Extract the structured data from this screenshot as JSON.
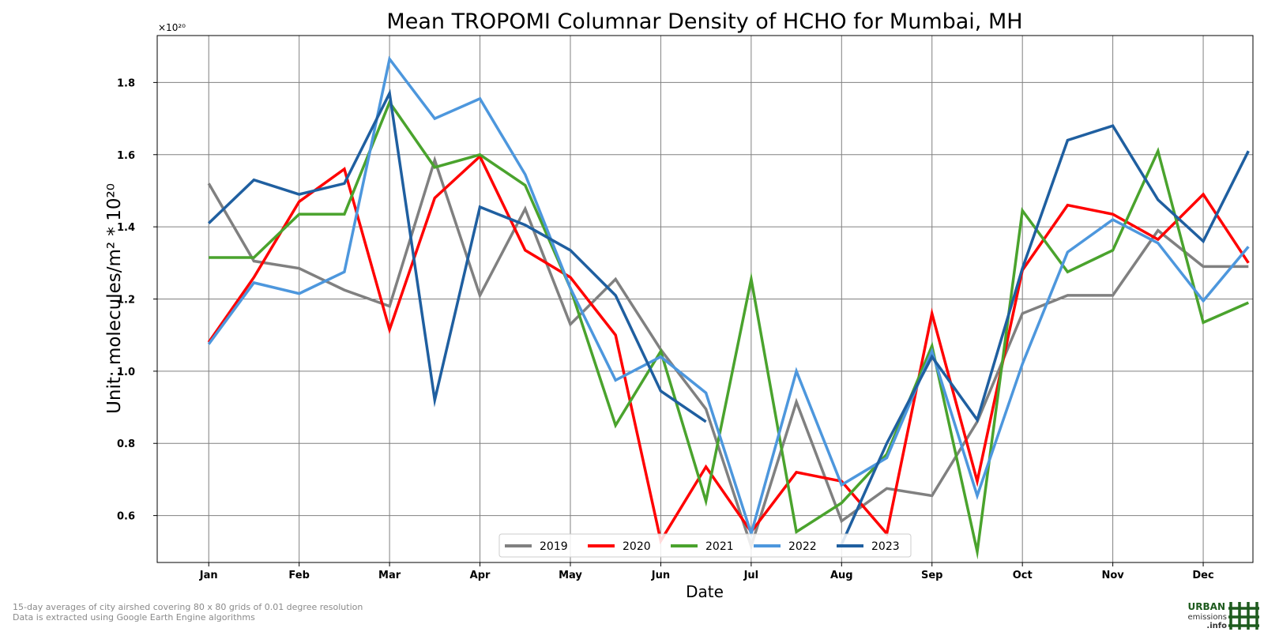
{
  "chart_data": {
    "type": "line",
    "title": "Mean TROPOMI Columnar Density of HCHO for Mumbai, MH",
    "xlabel": "Date",
    "ylabel": "Unit: molecules/m² * 10²⁰",
    "y_multiplier_label": "×10²⁰",
    "ylim": [
      0.47,
      1.93
    ],
    "yticks": [
      0.6,
      0.8,
      1.0,
      1.2,
      1.4,
      1.6,
      1.8
    ],
    "ytick_labels": [
      "0.6",
      "0.8",
      "1.0",
      "1.2",
      "1.4",
      "1.6",
      "1.8"
    ],
    "xlim": [
      -0.57,
      11.55
    ],
    "month_labels": [
      "Jan",
      "Feb",
      "Mar",
      "Apr",
      "May",
      "Jun",
      "Jul",
      "Aug",
      "Sep",
      "Oct",
      "Nov",
      "Dec"
    ],
    "x": [
      0,
      0.5,
      1,
      1.5,
      2,
      2.5,
      3,
      3.5,
      4,
      4.5,
      5,
      5.5,
      6,
      6.5,
      7,
      7.5,
      8,
      8.5,
      9,
      9.5,
      10,
      10.5,
      11,
      11.5
    ],
    "grid": true,
    "legend_position": "bottom-center",
    "series": [
      {
        "name": "2019",
        "color": "#808080",
        "values": [
          1.52,
          1.305,
          1.285,
          1.225,
          1.18,
          1.585,
          1.21,
          1.45,
          1.13,
          1.255,
          1.06,
          0.895,
          0.515,
          0.915,
          0.585,
          0.675,
          0.655,
          0.86,
          1.16,
          1.21,
          1.21,
          1.39,
          1.29,
          1.29
        ]
      },
      {
        "name": "2020",
        "color": "#ff0000",
        "values": [
          1.08,
          1.26,
          1.47,
          1.56,
          1.115,
          1.48,
          1.595,
          1.335,
          1.26,
          1.1,
          0.53,
          0.735,
          0.555,
          0.72,
          0.695,
          0.55,
          1.16,
          0.695,
          1.28,
          1.46,
          1.435,
          1.365,
          1.49,
          1.3
        ]
      },
      {
        "name": "2021",
        "color": "#4aa32d",
        "values": [
          1.315,
          1.315,
          1.435,
          1.435,
          1.745,
          1.565,
          1.6,
          1.515,
          1.23,
          0.85,
          1.055,
          0.64,
          1.255,
          0.555,
          0.635,
          0.77,
          1.07,
          0.5,
          1.445,
          1.275,
          1.335,
          1.61,
          1.135,
          1.19
        ]
      },
      {
        "name": "2022",
        "color": "#4d97dd",
        "values": [
          1.075,
          1.245,
          1.215,
          1.275,
          1.865,
          1.7,
          1.755,
          1.545,
          1.23,
          0.975,
          1.04,
          0.94,
          0.55,
          1.0,
          0.685,
          0.76,
          1.055,
          0.655,
          1.02,
          1.33,
          1.42,
          1.355,
          1.195,
          1.345
        ]
      },
      {
        "name": "2023",
        "color": "#1f5fa0",
        "values": [
          1.41,
          1.53,
          1.49,
          1.52,
          1.77,
          0.92,
          1.455,
          1.405,
          1.335,
          1.21,
          0.945,
          0.86,
          null,
          null,
          0.52,
          0.8,
          1.04,
          0.865,
          1.285,
          1.64,
          1.68,
          1.475,
          1.36,
          1.61
        ]
      }
    ]
  },
  "footnotes": [
    "15-day averages of city airshed covering 80 x 80 grids of 0.01 degree resolution",
    "Data is extracted using Google Earth Engine algorithms"
  ],
  "logo": {
    "line1": "URBAN",
    "line2": "emissions",
    "line3": ".info",
    "color": "#1e5b1e"
  }
}
